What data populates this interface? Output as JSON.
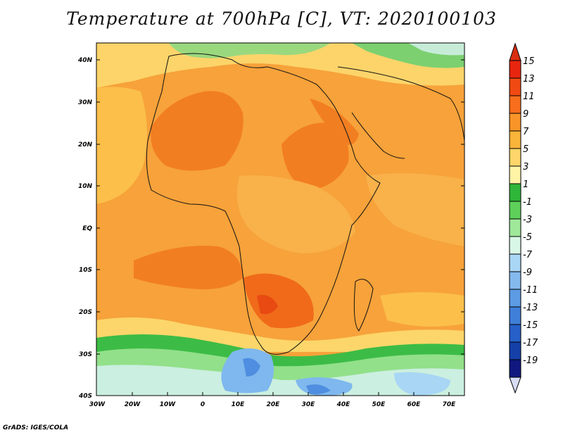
{
  "title": "Temperature at 700hPa [C], VT: 2020100103",
  "credit": "GrADS: IGES/COLA",
  "lat_labels": [
    "40N",
    "30N",
    "20N",
    "10N",
    "EQ",
    "10S",
    "20S",
    "30S",
    "40S"
  ],
  "lon_labels": [
    "30W",
    "20W",
    "10W",
    "0",
    "10E",
    "20E",
    "30E",
    "40E",
    "50E",
    "60E",
    "70E"
  ],
  "colorbar": {
    "labels": [
      "15",
      "13",
      "11",
      "9",
      "7",
      "5",
      "3",
      "1",
      "-1",
      "-3",
      "-5",
      "-7",
      "-9",
      "-11",
      "-13",
      "-15",
      "-17",
      "-19"
    ],
    "colors": [
      "#e8260f",
      "#f04a12",
      "#f76e1c",
      "#f99528",
      "#f9b43a",
      "#fcd66a",
      "#fff3a6",
      "#2fb63a",
      "#5ed05a",
      "#9fe89a",
      "#d9f7e6",
      "#aad6f5",
      "#84b9ee",
      "#5d9be4",
      "#3f7fd8",
      "#2660c8",
      "#1440a8",
      "#101880"
    ],
    "top_color": "#d92f10",
    "bottom_color": "#d8ddf6"
  },
  "palette": {
    "orange_dark": "#f5821e",
    "orange": "#f8a13a",
    "orange_light": "#fbbc49",
    "yellow": "#fcd86a",
    "green": "#36bd44",
    "green_light": "#90e08a",
    "blue_light": "#c0e5f7",
    "blue": "#79b6ee"
  }
}
